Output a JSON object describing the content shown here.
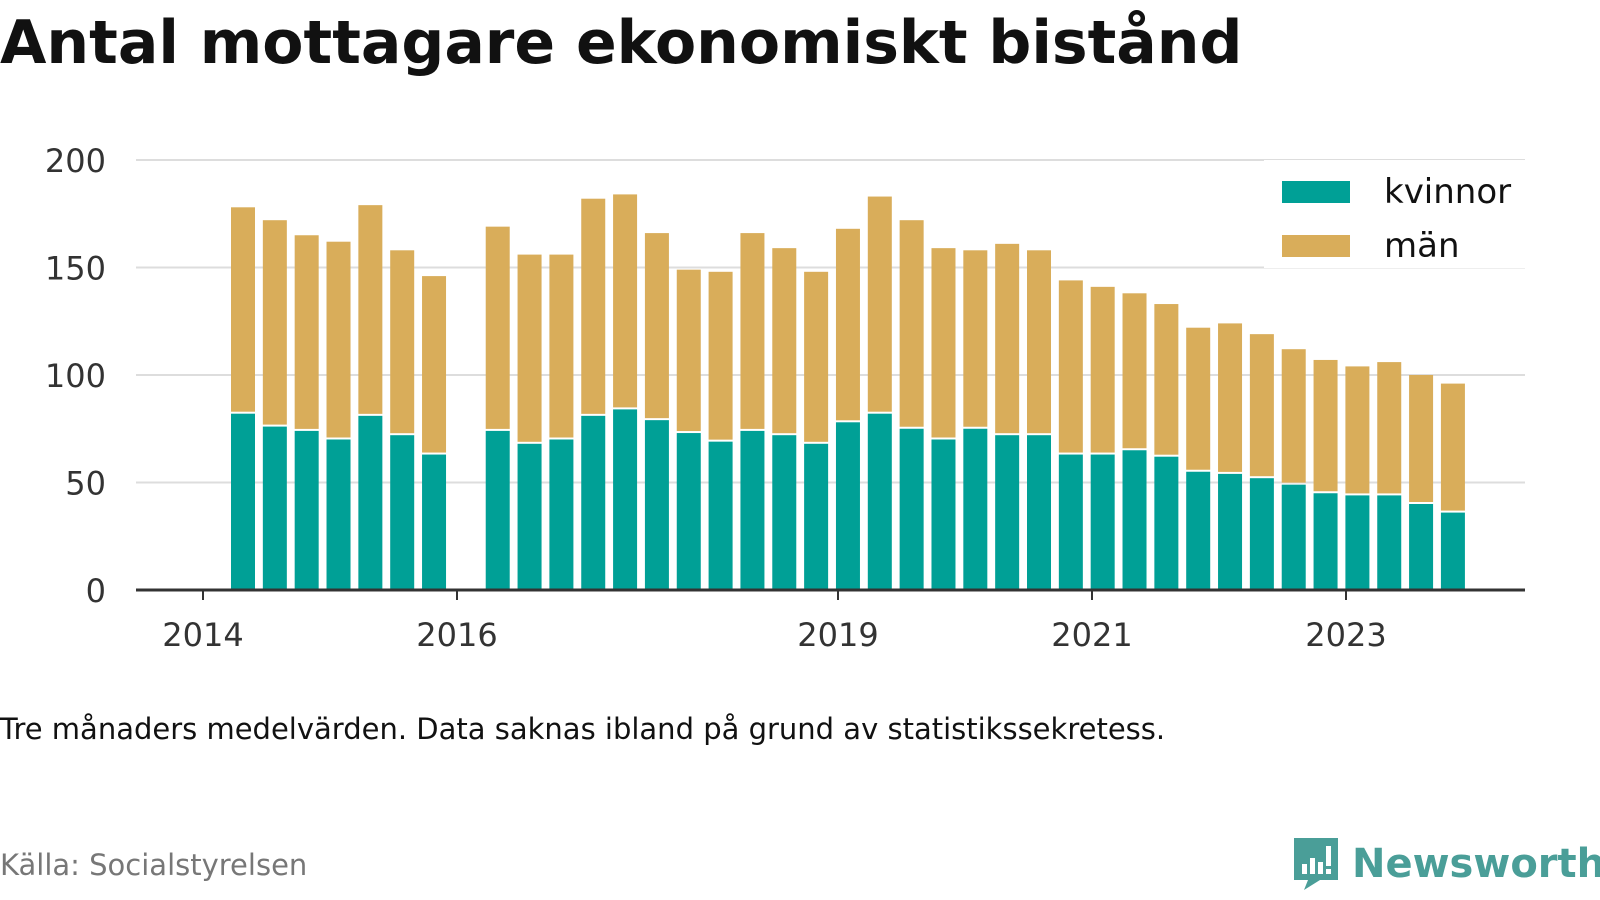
{
  "title": "Antal mottagare ekonomiskt bistånd",
  "subtitle": "Tre månaders medelvärden. Data saknas ibland på grund av statistikssekretess.",
  "source": "Källa: Socialstyrelsen",
  "brand": "Newsworthy",
  "colors": {
    "kvinnor": "#00a096",
    "man": "#d9ad5a",
    "grid": "#dddddd",
    "axis": "#333333",
    "brand": "#4a9e98"
  },
  "legend": [
    {
      "key": "kvinnor",
      "label": "kvinnor"
    },
    {
      "key": "man",
      "label": "män"
    }
  ],
  "chart_data": {
    "type": "bar",
    "stacked": true,
    "x_ticks": [
      "2014",
      "2016",
      "2019",
      "2021",
      "2023"
    ],
    "y_ticks": [
      0,
      50,
      100,
      150,
      200
    ],
    "ylim": [
      0,
      200
    ],
    "grid": true,
    "legend_position": "top-right",
    "series": [
      {
        "name": "kvinnor",
        "values": [
          82,
          76,
          74,
          70,
          81,
          72,
          63,
          null,
          74,
          68,
          70,
          81,
          84,
          79,
          73,
          69,
          74,
          72,
          68,
          78,
          82,
          75,
          70,
          75,
          72,
          72,
          63,
          63,
          65,
          62,
          55,
          54,
          52,
          49,
          45,
          44,
          44,
          40,
          36
        ]
      },
      {
        "name": "män",
        "values": [
          96,
          96,
          91,
          92,
          98,
          86,
          83,
          null,
          95,
          88,
          86,
          101,
          100,
          87,
          76,
          79,
          92,
          87,
          80,
          90,
          101,
          97,
          89,
          83,
          89,
          86,
          81,
          78,
          73,
          71,
          67,
          70,
          67,
          63,
          62,
          60,
          62,
          60,
          60
        ]
      }
    ]
  }
}
